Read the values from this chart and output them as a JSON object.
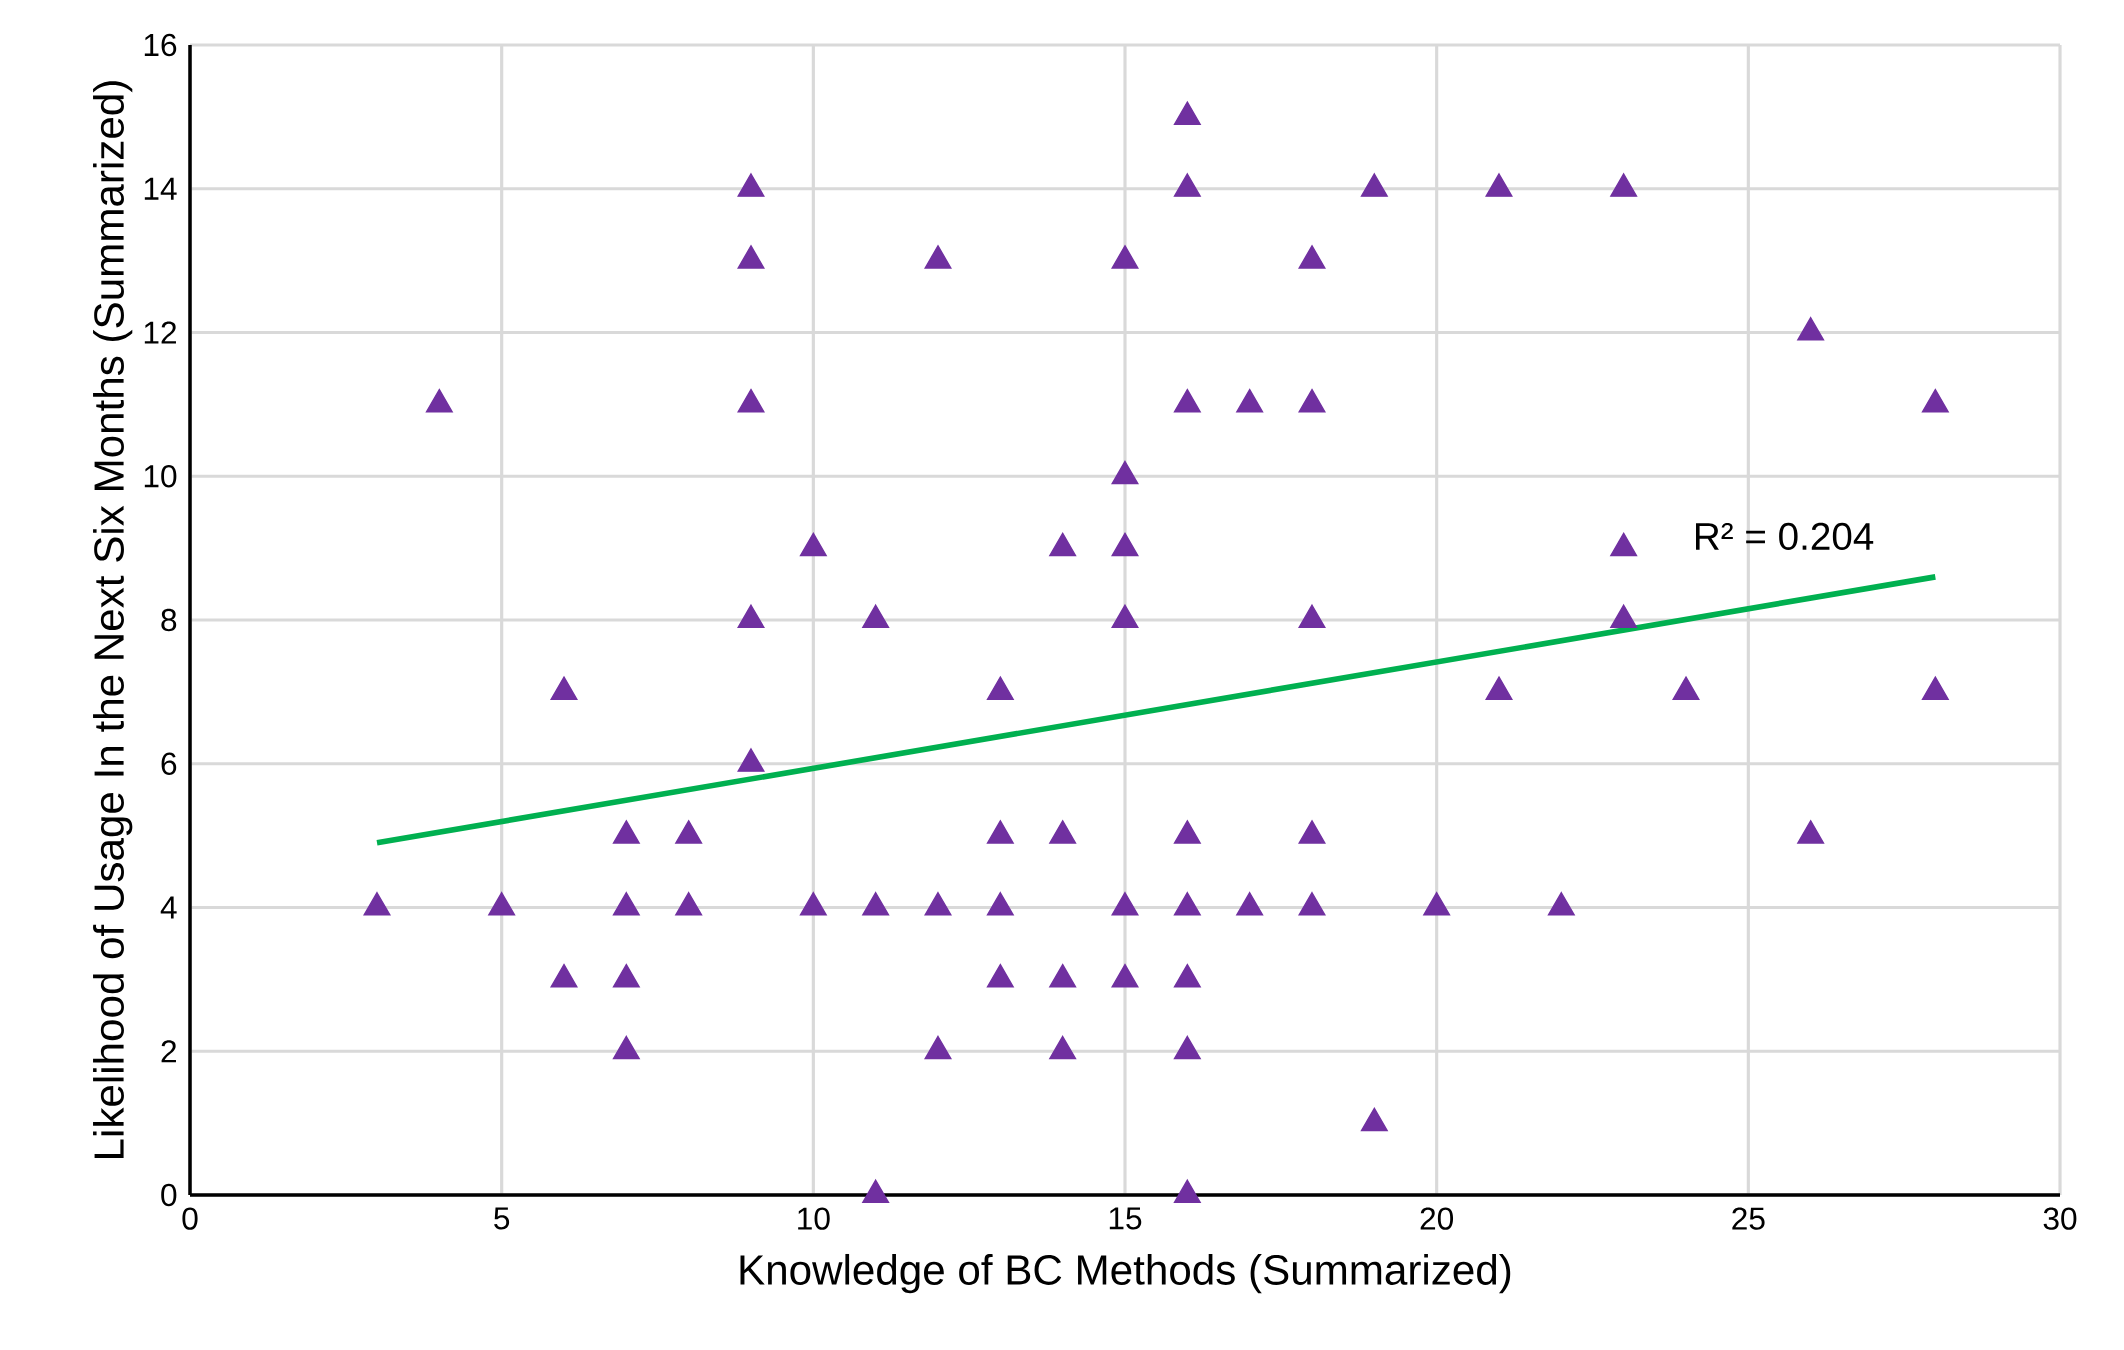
{
  "chart_data": {
    "type": "scatter",
    "xlabel": "Knowledge of BC Methods (Summarized)",
    "ylabel": "Likelihood of Usage In the Next Six Months (Summarized)",
    "xlim": [
      0,
      30
    ],
    "xticks": [
      0,
      5,
      10,
      15,
      20,
      25,
      30
    ],
    "ylim": [
      0,
      16
    ],
    "yticks": [
      0,
      2,
      4,
      6,
      8,
      10,
      12,
      14,
      16
    ],
    "grid": true,
    "series": [
      {
        "color": "#7030a0",
        "marker": "triangle",
        "x": [
          3,
          4,
          5,
          6,
          6,
          7,
          7,
          7,
          7,
          8,
          8,
          9,
          9,
          9,
          9,
          9,
          10,
          10,
          11,
          11,
          11,
          12,
          12,
          12,
          13,
          13,
          13,
          13,
          14,
          14,
          14,
          14,
          15,
          15,
          15,
          15,
          15,
          15,
          16,
          16,
          16,
          16,
          16,
          16,
          16,
          16,
          17,
          17,
          18,
          18,
          18,
          18,
          18,
          19,
          19,
          20,
          21,
          21,
          22,
          23,
          23,
          23,
          24,
          26,
          26,
          28,
          28
        ],
        "values": [
          4,
          11,
          4,
          7,
          3,
          5,
          4,
          3,
          2,
          5,
          4,
          14,
          13,
          11,
          8,
          6,
          9,
          4,
          8,
          4,
          0,
          13,
          4,
          2,
          7,
          5,
          4,
          3,
          9,
          5,
          3,
          2,
          13,
          10,
          9,
          8,
          4,
          3,
          15,
          14,
          11,
          5,
          4,
          3,
          2,
          0,
          11,
          4,
          13,
          11,
          8,
          5,
          4,
          14,
          1,
          4,
          14,
          7,
          4,
          14,
          9,
          8,
          7,
          12,
          5,
          11,
          7
        ]
      },
      {
        "type": "line",
        "color": "#00b050",
        "marker": "none",
        "x": [
          3,
          28
        ],
        "values": [
          4.9,
          8.6
        ]
      }
    ],
    "annotations": [
      "R² = 0.204"
    ]
  }
}
